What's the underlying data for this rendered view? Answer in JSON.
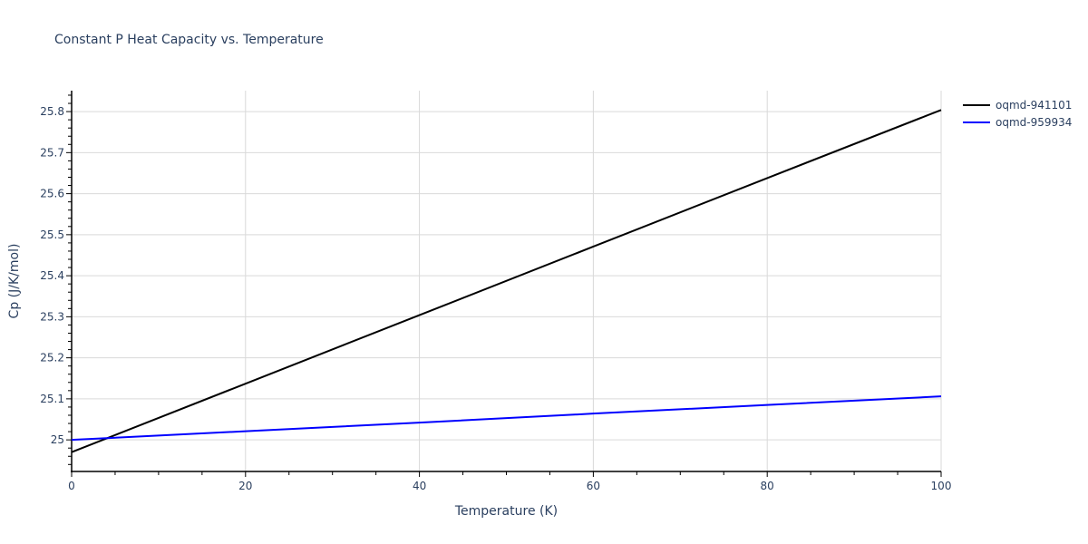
{
  "title": "Constant P Heat Capacity vs. Temperature",
  "xaxis": {
    "label": "Temperature (K)",
    "range": [
      0,
      100
    ],
    "ticks": [
      0,
      20,
      40,
      60,
      80,
      100
    ]
  },
  "yaxis": {
    "label": "Cp (J/K/mol)",
    "range": [
      24.923,
      25.851
    ],
    "ticks": [
      "25",
      "25.1",
      "25.2",
      "25.3",
      "25.4",
      "25.5",
      "25.6",
      "25.7",
      "25.8"
    ]
  },
  "legend": [
    {
      "name": "oqmd-941101",
      "color": "#000000"
    },
    {
      "name": "oqmd-959934",
      "color": "#0000ff"
    }
  ],
  "chart_data": {
    "type": "line",
    "title": "Constant P Heat Capacity vs. Temperature",
    "xlabel": "Temperature (K)",
    "ylabel": "Cp (J/K/mol)",
    "xlim": [
      0,
      100
    ],
    "ylim": [
      24.923,
      25.851
    ],
    "grid": true,
    "legend_position": "top-right outside",
    "x": [
      0,
      20,
      40,
      60,
      80,
      100
    ],
    "series": [
      {
        "name": "oqmd-941101",
        "color": "#000000",
        "values": [
          24.97,
          25.137,
          25.304,
          25.471,
          25.638,
          25.804
        ]
      },
      {
        "name": "oqmd-959934",
        "color": "#0000ff",
        "values": [
          25.0,
          25.021,
          25.042,
          25.064,
          25.085,
          25.106
        ]
      }
    ]
  }
}
